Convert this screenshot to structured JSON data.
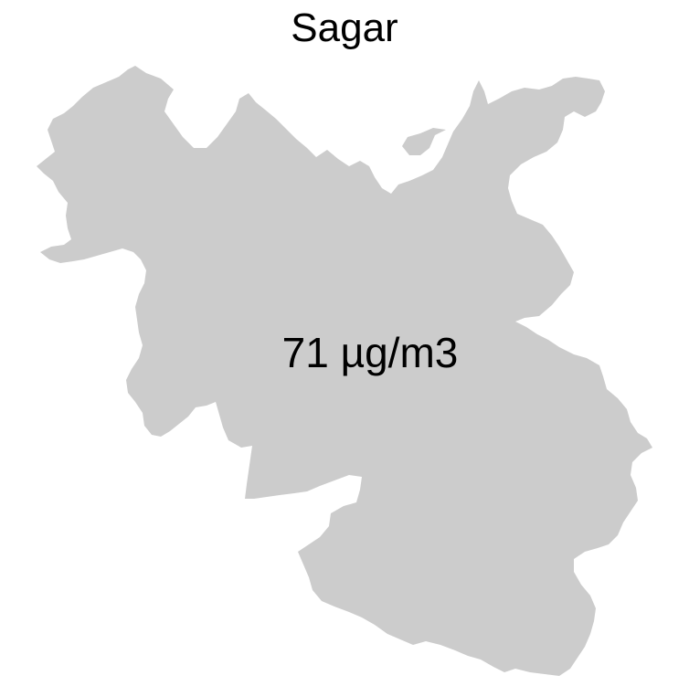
{
  "map": {
    "title": "Sagar",
    "value_label": "71 µg/m3",
    "fill_color": "#cccccc"
  }
}
